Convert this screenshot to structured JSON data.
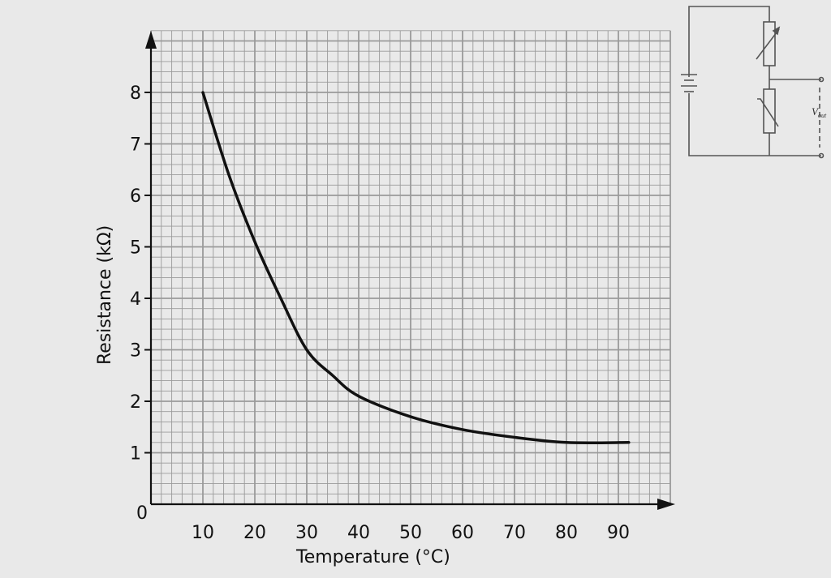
{
  "chart_data": {
    "type": "line",
    "title": "",
    "xlabel": "Temperature (°C)",
    "ylabel": "Resistance (kΩ)",
    "origin_label": "0",
    "xlim": [
      0,
      100
    ],
    "ylim": [
      0,
      9.2
    ],
    "x_ticks": [
      10,
      20,
      30,
      40,
      50,
      60,
      70,
      80,
      90
    ],
    "y_ticks": [
      1,
      2,
      3,
      4,
      5,
      6,
      7,
      8
    ],
    "grid": true,
    "grid_minor": {
      "x": 2,
      "y": 0.2
    },
    "series": [
      {
        "x": [
          10,
          15,
          20,
          25,
          30,
          35,
          40,
          50,
          60,
          70,
          80,
          92
        ],
        "y": [
          8.0,
          6.4,
          5.1,
          4.0,
          3.0,
          2.5,
          2.1,
          1.7,
          1.45,
          1.3,
          1.2,
          1.2
        ],
        "color": "#111111"
      }
    ]
  },
  "circuit": {
    "vout_label": "V",
    "vout_sub": "out"
  },
  "colors": {
    "paper": "#e9e9e9",
    "grid": "#9a9a9a",
    "curve": "#111111"
  }
}
